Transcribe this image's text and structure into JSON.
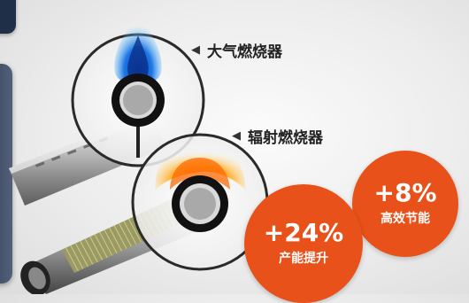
{
  "labels": {
    "atmospheric": "大气燃烧器",
    "radiant": "辐射燃烧器"
  },
  "badges": {
    "capacity": {
      "value": "+24%",
      "caption": "产能提升"
    },
    "energy": {
      "value": "+8%",
      "caption": "高效节能"
    }
  },
  "colors": {
    "accent": "#e8521a",
    "dark_panel": "#1f2f47"
  },
  "icons": [
    "left-arrow-icon"
  ]
}
